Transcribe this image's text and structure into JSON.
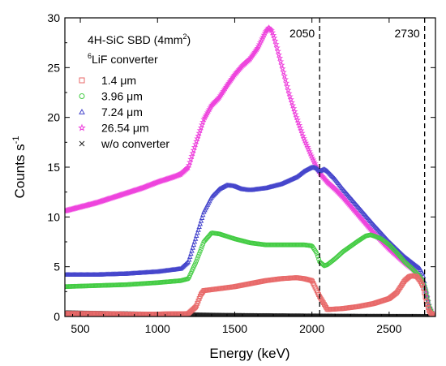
{
  "chart_data": {
    "type": "scatter",
    "xlabel": "Energy (keV)",
    "ylabel_main": "Counts s",
    "ylabel_sup": "-1",
    "xlim": [
      400,
      2800
    ],
    "ylim": [
      0,
      30
    ],
    "xticks": [
      500,
      1000,
      1500,
      2000,
      2500
    ],
    "yticks": [
      0,
      5,
      10,
      15,
      20,
      25,
      30
    ],
    "grid": false,
    "legend_position": "top-left",
    "annotation_line1": "4H-SiC SBD (4mm",
    "annotation_line1_sup": "2",
    "annotation_line1_end": ")",
    "annotation_line2_sup": "6",
    "annotation_line2": "LiF converter",
    "reference_lines": [
      {
        "x": 2050,
        "label": "2050"
      },
      {
        "x": 2730,
        "label": "2730"
      }
    ],
    "series": [
      {
        "name": "1.4 μm",
        "marker": "square",
        "color": "#e86a6a",
        "x": [
          400,
          600,
          800,
          1000,
          1200,
          1250,
          1280,
          1300,
          1400,
          1500,
          1600,
          1700,
          1800,
          1900,
          1950,
          2000,
          2050,
          2100,
          2200,
          2300,
          2400,
          2500,
          2550,
          2600,
          2630,
          2650,
          2680,
          2700,
          2720,
          2740,
          2760,
          2780,
          2800
        ],
        "y": [
          0.3,
          0.3,
          0.25,
          0.25,
          0.3,
          1.0,
          2.2,
          2.6,
          2.8,
          3.0,
          3.3,
          3.6,
          3.8,
          3.9,
          3.8,
          3.6,
          2.0,
          0.7,
          0.8,
          1.0,
          1.3,
          1.8,
          2.4,
          3.6,
          4.0,
          4.1,
          4.0,
          3.6,
          3.0,
          1.5,
          0.5,
          0.2,
          0.1
        ]
      },
      {
        "name": "3.96 μm",
        "marker": "circle",
        "color": "#44cc44",
        "x": [
          400,
          600,
          800,
          1000,
          1150,
          1200,
          1250,
          1300,
          1350,
          1400,
          1500,
          1600,
          1700,
          1800,
          1900,
          1950,
          2000,
          2030,
          2050,
          2080,
          2100,
          2150,
          2200,
          2300,
          2350,
          2380,
          2400,
          2450,
          2500,
          2550,
          2600,
          2650,
          2700,
          2720,
          2740,
          2760,
          2780
        ],
        "y": [
          3.0,
          3.1,
          3.2,
          3.4,
          3.6,
          3.8,
          5.5,
          7.5,
          8.4,
          8.3,
          7.8,
          7.4,
          7.2,
          7.2,
          7.2,
          7.2,
          7.1,
          6.4,
          5.5,
          5.1,
          5.2,
          5.8,
          6.5,
          7.6,
          8.1,
          8.2,
          8.1,
          7.8,
          7.2,
          6.4,
          5.5,
          4.8,
          4.0,
          3.5,
          2.5,
          1.0,
          0.3
        ]
      },
      {
        "name": "7.24 μm",
        "marker": "triangle",
        "color": "#4646cc",
        "x": [
          400,
          600,
          800,
          1000,
          1150,
          1200,
          1250,
          1300,
          1350,
          1400,
          1450,
          1500,
          1550,
          1600,
          1700,
          1800,
          1900,
          1950,
          2000,
          2030,
          2050,
          2080,
          2100,
          2150,
          2200,
          2300,
          2400,
          2500,
          2600,
          2650,
          2700,
          2720,
          2740,
          2760,
          2780
        ],
        "y": [
          4.2,
          4.2,
          4.3,
          4.5,
          4.8,
          5.5,
          8.0,
          10.5,
          12.0,
          12.8,
          13.2,
          13.1,
          12.8,
          12.7,
          12.9,
          13.3,
          14.0,
          14.6,
          15.0,
          14.9,
          14.6,
          14.8,
          14.6,
          13.8,
          12.8,
          11.0,
          9.2,
          7.5,
          6.0,
          5.4,
          4.8,
          4.2,
          2.5,
          1.0,
          0.3
        ]
      },
      {
        "name": "26.54 μm",
        "marker": "star",
        "color": "#ee44dd",
        "x": [
          400,
          500,
          600,
          700,
          800,
          900,
          1000,
          1100,
          1150,
          1200,
          1250,
          1300,
          1350,
          1400,
          1450,
          1500,
          1550,
          1600,
          1650,
          1700,
          1720,
          1740,
          1760,
          1800,
          1850,
          1900,
          1950,
          2000,
          2050,
          2100,
          2150,
          2200,
          2300,
          2400,
          2500,
          2600,
          2650,
          2700,
          2720,
          2740,
          2760,
          2780
        ],
        "y": [
          10.6,
          11.0,
          11.4,
          11.9,
          12.4,
          12.9,
          13.5,
          14.0,
          14.3,
          15.0,
          17.5,
          19.8,
          21.2,
          22.0,
          23.2,
          24.3,
          25.2,
          25.9,
          27.0,
          28.6,
          29.0,
          28.7,
          27.8,
          25.5,
          22.5,
          20.0,
          17.8,
          16.0,
          14.4,
          13.5,
          12.8,
          12.0,
          10.2,
          8.4,
          6.8,
          5.4,
          4.8,
          4.0,
          3.5,
          2.3,
          1.0,
          0.3
        ]
      },
      {
        "name": "w/o converter",
        "marker": "cross",
        "color": "#222222",
        "x": [
          400,
          600,
          800,
          1000,
          1200,
          1400,
          1600,
          1800,
          2000,
          2200,
          2400,
          2600,
          2800
        ],
        "y": [
          0.4,
          0.35,
          0.3,
          0.25,
          0.2,
          0.15,
          0.12,
          0.1,
          0.08,
          0.06,
          0.05,
          0.04,
          0.03
        ]
      }
    ]
  }
}
